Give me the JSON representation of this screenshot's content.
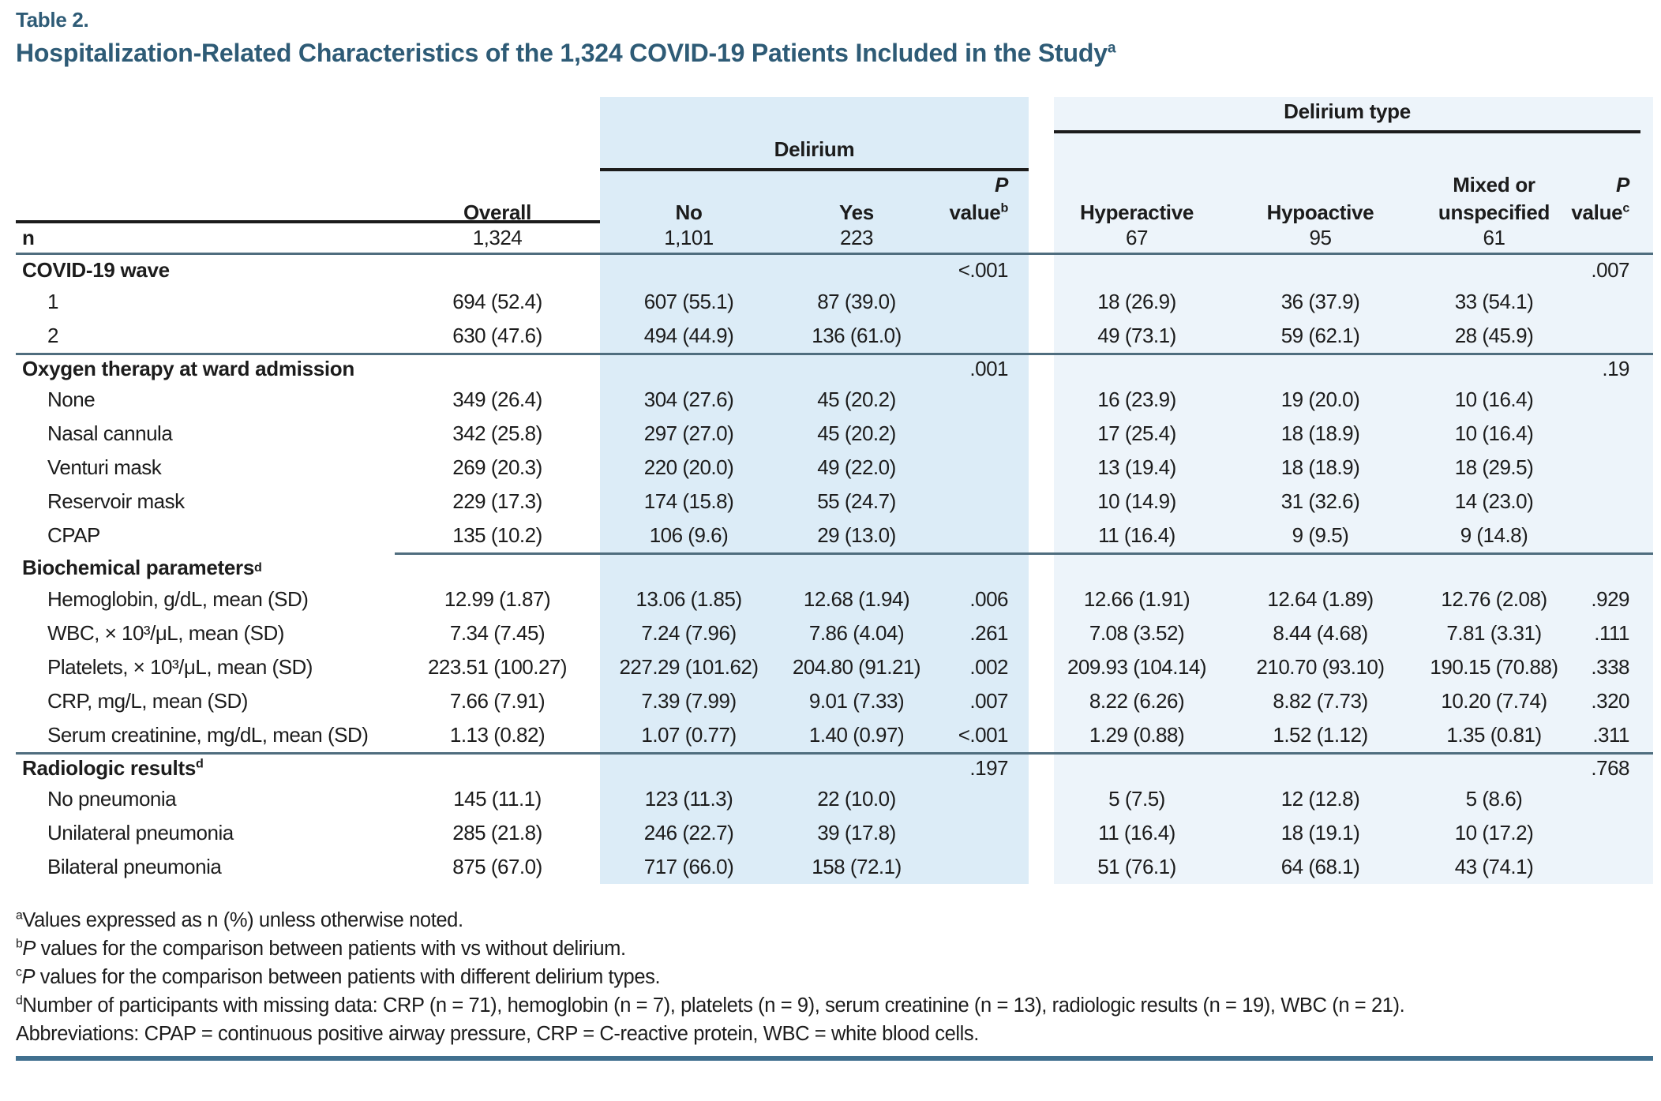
{
  "page": {
    "table_label": "Table 2.",
    "title": "Hospitalization-Related Characteristics of the 1,324 COVID-19 Patients Included in the Study",
    "title_sup": "a"
  },
  "colors": {
    "accent": "#2E5B76",
    "delirium_band": "#DCECF7",
    "delirium_type_band": "#EDF4FA",
    "section_rule": "#4F6D7E",
    "header_rule": "#1C1C1C",
    "bottom_rule": "#41708F"
  },
  "header": {
    "spanners": {
      "delirium": "Delirium",
      "delirium_type": "Delirium type"
    },
    "columns": {
      "overall": "Overall",
      "no": "No",
      "yes": "Yes",
      "pvalue_b": {
        "p": "P",
        "text": " value",
        "sup": "b"
      },
      "hyperactive": "Hyperactive",
      "hypoactive": "Hypoactive",
      "mixed_line1": "Mixed or",
      "mixed_line2": "unspecified",
      "pvalue_c": {
        "p": "P",
        "text": "value",
        "sup": "c"
      }
    }
  },
  "table": {
    "rows": [
      {
        "kind": "n",
        "label": "n",
        "sup": "",
        "topline": "none",
        "cells": [
          "1,324",
          "1,101",
          "223",
          "",
          "67",
          "95",
          "61",
          ""
        ]
      },
      {
        "kind": "group",
        "label": "COVID-19 wave",
        "sup": "",
        "topline": "none",
        "cells": [
          "",
          "",
          "",
          "<.001",
          "",
          "",
          "",
          ".007"
        ]
      },
      {
        "kind": "item",
        "label": "1",
        "sup": "",
        "topline": "none",
        "cells": [
          "694 (52.4)",
          "607 (55.1)",
          "87 (39.0)",
          "",
          "18 (26.9)",
          "36 (37.9)",
          "33 (54.1)",
          ""
        ]
      },
      {
        "kind": "item",
        "label": "2",
        "sup": "",
        "topline": "none",
        "cells": [
          "630 (47.6)",
          "494 (44.9)",
          "136 (61.0)",
          "",
          "49 (73.1)",
          "59 (62.1)",
          "28 (45.9)",
          ""
        ]
      },
      {
        "kind": "group",
        "label": "Oxygen therapy at ward admission",
        "sup": "",
        "topline": "full",
        "cells": [
          "",
          "",
          "",
          ".001",
          "",
          "",
          "",
          ".19"
        ]
      },
      {
        "kind": "item",
        "label": "None",
        "sup": "",
        "topline": "none",
        "cells": [
          "349 (26.4)",
          "304 (27.6)",
          "45 (20.2)",
          "",
          "16 (23.9)",
          "19 (20.0)",
          "10 (16.4)",
          ""
        ]
      },
      {
        "kind": "item",
        "label": "Nasal cannula",
        "sup": "",
        "topline": "none",
        "cells": [
          "342 (25.8)",
          "297 (27.0)",
          "45 (20.2)",
          "",
          "17 (25.4)",
          "18 (18.9)",
          "10 (16.4)",
          ""
        ]
      },
      {
        "kind": "item",
        "label": "Venturi mask",
        "sup": "",
        "topline": "none",
        "cells": [
          "269 (20.3)",
          "220 (20.0)",
          "49 (22.0)",
          "",
          "13 (19.4)",
          "18 (18.9)",
          "18 (29.5)",
          ""
        ]
      },
      {
        "kind": "item",
        "label": "Reservoir mask",
        "sup": "",
        "topline": "none",
        "cells": [
          "229 (17.3)",
          "174 (15.8)",
          "55 (24.7)",
          "",
          "10 (14.9)",
          "31 (32.6)",
          "14 (23.0)",
          ""
        ]
      },
      {
        "kind": "item",
        "label": "CPAP",
        "sup": "",
        "topline": "none",
        "cells": [
          "135 (10.2)",
          "106 (9.6)",
          "29 (13.0)",
          "",
          "11 (16.4)",
          "9 (9.5)",
          "9 (14.8)",
          ""
        ]
      },
      {
        "kind": "group",
        "label": "Biochemical parameters",
        "sup": "d",
        "topline": "partial",
        "cells": [
          "",
          "",
          "",
          "",
          "",
          "",
          "",
          ""
        ]
      },
      {
        "kind": "item",
        "label": "Hemoglobin, g/dL, mean (SD)",
        "sup": "",
        "topline": "none",
        "cells": [
          "12.99 (1.87)",
          "13.06 (1.85)",
          "12.68 (1.94)",
          ".006",
          "12.66 (1.91)",
          "12.64 (1.89)",
          "12.76 (2.08)",
          ".929"
        ]
      },
      {
        "kind": "item",
        "label": "WBC, × 10³/μL, mean (SD)",
        "sup": "",
        "topline": "none",
        "cells": [
          "7.34 (7.45)",
          "7.24 (7.96)",
          "7.86 (4.04)",
          ".261",
          "7.08 (3.52)",
          "8.44 (4.68)",
          "7.81 (3.31)",
          ".111"
        ]
      },
      {
        "kind": "item",
        "label": "Platelets, × 10³/μL, mean (SD)",
        "sup": "",
        "topline": "none",
        "cells": [
          "223.51 (100.27)",
          "227.29 (101.62)",
          "204.80 (91.21)",
          ".002",
          "209.93 (104.14)",
          "210.70 (93.10)",
          "190.15 (70.88)",
          ".338"
        ]
      },
      {
        "kind": "item",
        "label": "CRP, mg/L, mean (SD)",
        "sup": "",
        "topline": "none",
        "cells": [
          "7.66 (7.91)",
          "7.39 (7.99)",
          "9.01 (7.33)",
          ".007",
          "8.22 (6.26)",
          "8.82 (7.73)",
          "10.20 (7.74)",
          ".320"
        ]
      },
      {
        "kind": "item",
        "label": "Serum creatinine, mg/dL, mean (SD)",
        "sup": "",
        "topline": "none",
        "cells": [
          "1.13 (0.82)",
          "1.07 (0.77)",
          "1.40 (0.97)",
          "<.001",
          "1.29 (0.88)",
          "1.52 (1.12)",
          "1.35 (0.81)",
          ".311"
        ]
      },
      {
        "kind": "group",
        "label": "Radiologic results",
        "sup": "d",
        "topline": "full",
        "cells": [
          "",
          "",
          "",
          ".197",
          "",
          "",
          "",
          ".768"
        ]
      },
      {
        "kind": "item",
        "label": "No pneumonia",
        "sup": "",
        "topline": "none",
        "cells": [
          "145 (11.1)",
          "123 (11.3)",
          "22 (10.0)",
          "",
          "5 (7.5)",
          "12 (12.8)",
          "5 (8.6)",
          ""
        ]
      },
      {
        "kind": "item",
        "label": "Unilateral pneumonia",
        "sup": "",
        "topline": "none",
        "cells": [
          "285 (21.8)",
          "246 (22.7)",
          "39 (17.8)",
          "",
          "11 (16.4)",
          "18 (19.1)",
          "10 (17.2)",
          ""
        ]
      },
      {
        "kind": "item",
        "label": "Bilateral pneumonia",
        "sup": "",
        "topline": "none",
        "cells": [
          "875 (67.0)",
          "717 (66.0)",
          "158 (72.1)",
          "",
          "51 (76.1)",
          "64 (68.1)",
          "43 (74.1)",
          ""
        ]
      }
    ]
  },
  "footnotes": [
    {
      "sup": "a",
      "italic": "",
      "text": "Values expressed as n (%) unless otherwise noted."
    },
    {
      "sup": "b",
      "italic": "P",
      "text": " values for the comparison between patients with vs without delirium."
    },
    {
      "sup": "c",
      "italic": "P",
      "text": " values for the comparison between patients with different delirium types."
    },
    {
      "sup": "d",
      "italic": "",
      "text": "Number of participants with missing data: CRP (n = 71), hemoglobin (n = 7), platelets (n = 9), serum creatinine (n = 13), radiologic results (n = 19), WBC (n = 21)."
    },
    {
      "sup": "",
      "italic": "",
      "text": "Abbreviations: CPAP = continuous positive airway pressure, CRP = C-reactive protein, WBC = white blood cells."
    }
  ]
}
